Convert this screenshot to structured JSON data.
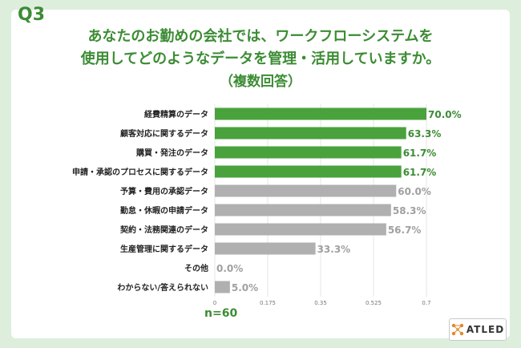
{
  "header": {
    "q_label": "Q3",
    "title_line1": "あなたのお勤めの会社では、ワークフローシステムを",
    "title_line2": "使用してどのようなデータを管理・活用していますか。",
    "title_line3": "（複数回答）"
  },
  "footer": {
    "n_label": "n=60",
    "brand": "ATLED"
  },
  "colors": {
    "highlight": "#4aa23d",
    "normal": "#b0b0b0",
    "accent_text": "#3c8c34"
  },
  "chart_data": {
    "type": "bar",
    "orientation": "horizontal",
    "categories": [
      "経費精算のデータ",
      "顧客対応に関するデータ",
      "購買・発注のデータ",
      "申請・承認のプロセスに関するデータ",
      "予算・費用の承認データ",
      "勤怠・休暇の申請データ",
      "契約・法務関連のデータ",
      "生産管理に関するデータ",
      "その他",
      "わからない/答えられない"
    ],
    "values": [
      0.7,
      0.633,
      0.617,
      0.617,
      0.6,
      0.583,
      0.567,
      0.333,
      0.0,
      0.05
    ],
    "value_labels": [
      "70.0%",
      "63.3%",
      "61.7%",
      "61.7%",
      "60.0%",
      "58.3%",
      "56.7%",
      "33.3%",
      "0.0%",
      "5.0%"
    ],
    "highlighted": [
      true,
      true,
      true,
      true,
      false,
      false,
      false,
      false,
      false,
      false
    ],
    "xlim": [
      0,
      0.7
    ],
    "xticks": [
      "0",
      "0.175",
      "0.35",
      "0.525",
      "0.7"
    ],
    "grid": true
  }
}
